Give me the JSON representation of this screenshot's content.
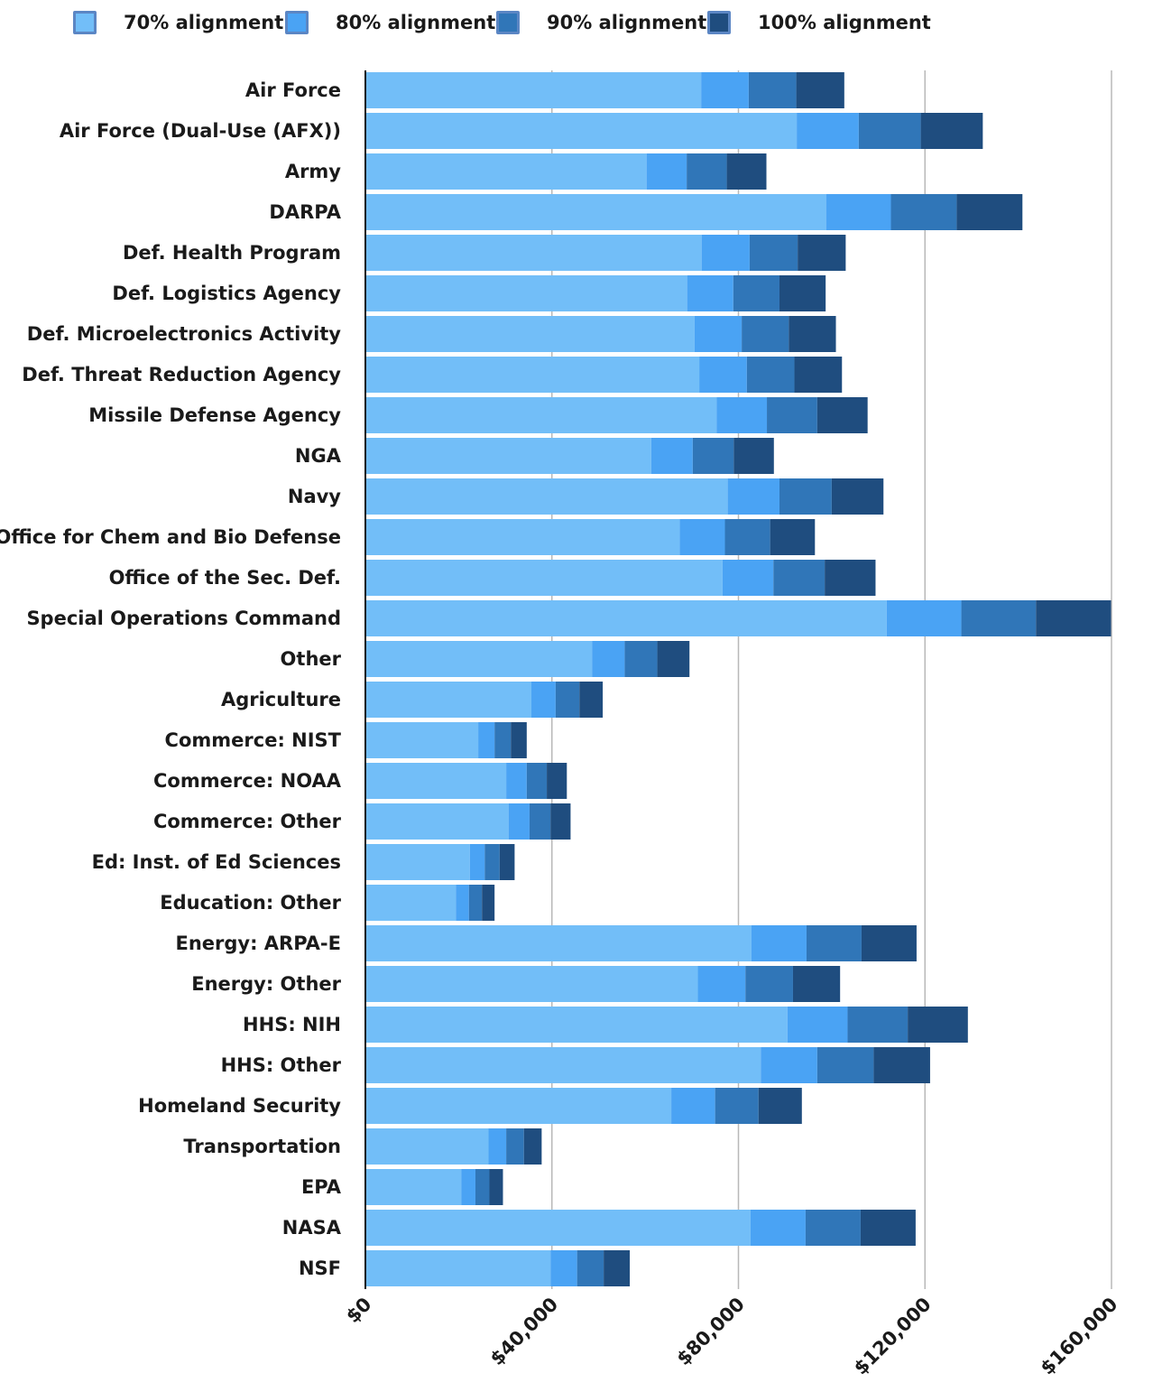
{
  "chart_data": {
    "type": "bar",
    "orientation": "horizontal",
    "stacked": true,
    "title": "",
    "xlabel": "",
    "ylabel": "",
    "xlim": [
      0,
      160000
    ],
    "x_ticks": [
      0,
      40000,
      80000,
      120000,
      160000
    ],
    "x_tick_labels": [
      "$0",
      "$40,000",
      "$80,000",
      "$120,000",
      "$160,000"
    ],
    "grid": "vertical",
    "legend_position": "top",
    "categories": [
      "Air Force",
      "Air Force (Dual-Use (AFX))",
      "Army",
      "DARPA",
      "Def. Health Program",
      "Def. Logistics Agency",
      "Def. Microelectronics Activity",
      "Def. Threat Reduction Agency",
      "Missile Defense Agency",
      "NGA",
      "Navy",
      "Office for Chem and Bio Defense",
      "Office of the Sec. Def.",
      "Special Operations Command",
      "Other",
      "Agriculture",
      "Commerce: NIST",
      "Commerce: NOAA",
      "Commerce: Other",
      "Ed: Inst. of Ed Sciences",
      "Education: Other",
      "Energy: ARPA-E",
      "Energy: Other",
      "HHS: NIH",
      "HHS: Other",
      "Homeland Security",
      "Transportation",
      "EPA",
      "NASA",
      "NSF"
    ],
    "series": [
      {
        "name": "70% alignment",
        "color": "#72bef8",
        "values": [
          72000,
          92500,
          60300,
          98800,
          72100,
          69000,
          70600,
          71600,
          75300,
          61300,
          77700,
          67400,
          76600,
          111800,
          48600,
          35600,
          24200,
          30200,
          30700,
          22400,
          19400,
          82800,
          71300,
          90500,
          84800,
          65600,
          26400,
          20600,
          82600,
          39700
        ]
      },
      {
        "name": "80% alignment",
        "color": "#4aa3f4",
        "values": [
          10200,
          13300,
          8600,
          13900,
          10300,
          9900,
          10100,
          10200,
          10800,
          8900,
          11100,
          9700,
          10900,
          16000,
          7000,
          5200,
          3500,
          4400,
          4500,
          3200,
          2800,
          11800,
          10200,
          12900,
          12100,
          9400,
          3800,
          3000,
          11800,
          5700
        ]
      },
      {
        "name": "90% alignment",
        "color": "#3076b8",
        "values": [
          10200,
          13300,
          8600,
          14100,
          10300,
          9900,
          10100,
          10200,
          10800,
          8800,
          11200,
          9700,
          11000,
          16000,
          7000,
          5100,
          3500,
          4300,
          4500,
          3200,
          2800,
          11800,
          10200,
          12900,
          12100,
          9300,
          3800,
          3000,
          11800,
          5700
        ]
      },
      {
        "name": "100% alignment",
        "color": "#1f4d7f",
        "values": [
          10300,
          13300,
          8500,
          14100,
          10300,
          9900,
          10100,
          10200,
          10800,
          8600,
          11100,
          9600,
          10900,
          16100,
          6900,
          5000,
          3400,
          4300,
          4300,
          3200,
          2700,
          11800,
          10100,
          12900,
          12100,
          9300,
          3800,
          2900,
          11800,
          5600
        ]
      }
    ]
  }
}
